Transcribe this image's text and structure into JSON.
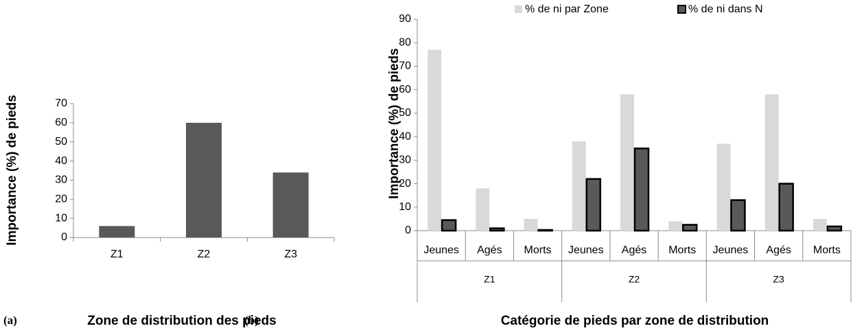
{
  "chart_data": [
    {
      "type": "bar",
      "panel_label": "(a)",
      "x_label": "Zone de distribution des pieds",
      "y_label": "Importance (%) de  pieds",
      "categories": [
        "Z1",
        "Z2",
        "Z3"
      ],
      "values": [
        6,
        60,
        34
      ],
      "color": "#595959",
      "ylim": [
        0,
        70
      ],
      "yticks": [
        0,
        10,
        20,
        30,
        40,
        50,
        60,
        70
      ],
      "grid": false
    },
    {
      "type": "grouped_bar",
      "panel_label": "(b)",
      "x_label": "Catégorie de pieds par zone de distribution",
      "y_label": "Importance (%) de pieds",
      "categories": [
        "Jeunes",
        "Agés",
        "Morts",
        "Jeunes",
        "Agés",
        "Morts",
        "Jeunes",
        "Agés",
        "Morts"
      ],
      "groups": [
        "Z1",
        "Z2",
        "Z3"
      ],
      "series": [
        {
          "name": "% de ni par Zone",
          "color": "#d9d9d9",
          "values": [
            77,
            18,
            5,
            38,
            58,
            4,
            37,
            58,
            5
          ]
        },
        {
          "name": "% de ni dans N",
          "color": "#595959",
          "stroke": "#000000",
          "values": [
            4.5,
            1,
            0.3,
            22,
            35,
            2.5,
            13,
            20,
            1.8
          ]
        }
      ],
      "ylim": [
        0,
        90
      ],
      "yticks": [
        0,
        10,
        20,
        30,
        40,
        50,
        60,
        70,
        80,
        90
      ],
      "grid": false,
      "legend": "top"
    }
  ]
}
